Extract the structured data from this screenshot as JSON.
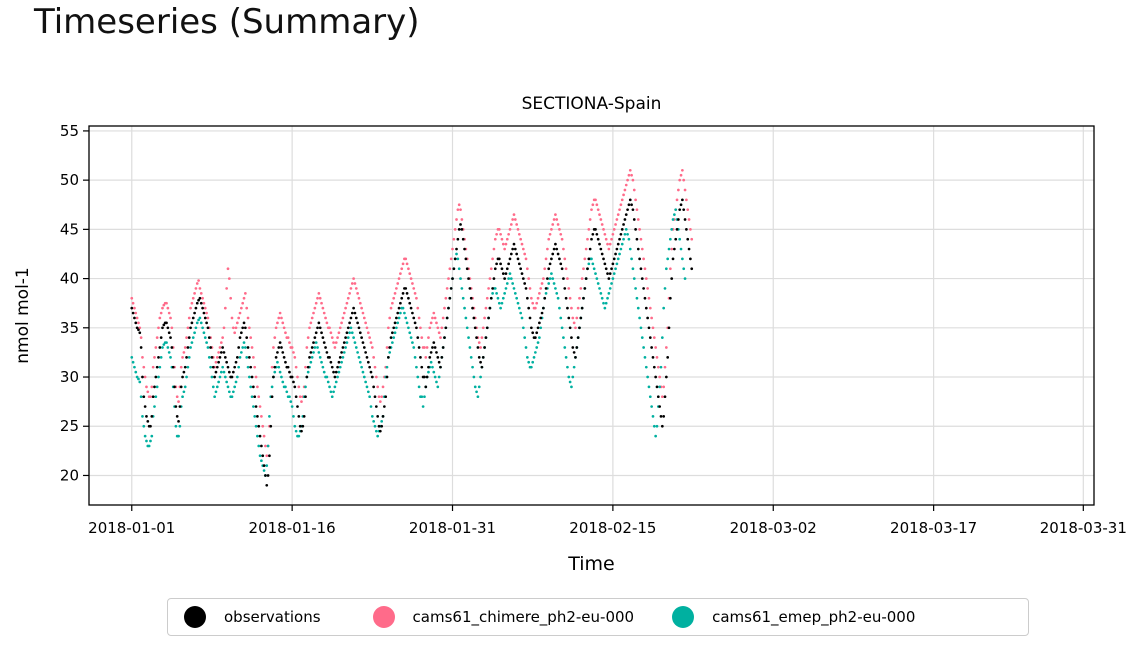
{
  "page": {
    "heading": "Timeseries (Summary)"
  },
  "colors": {
    "observations": "#000000",
    "chimere": "#ff6b8a",
    "emep": "#00b0a0"
  },
  "chart_data": {
    "type": "scatter",
    "title": "SECTIONA-Spain",
    "xlabel": "Time",
    "ylabel": "nmol mol-1",
    "xlim": [
      "2017-12-28",
      "2018-04-01"
    ],
    "ylim": [
      17,
      55.5
    ],
    "x_ticks": [
      "2018-01-01",
      "2018-01-16",
      "2018-01-31",
      "2018-02-15",
      "2018-03-02",
      "2018-03-17",
      "2018-03-31"
    ],
    "y_ticks": [
      20,
      25,
      30,
      35,
      40,
      45,
      50,
      55
    ],
    "grid": true,
    "legend": "bottom-center",
    "x_resolution": "3-hourly",
    "series": [
      {
        "name": "observations",
        "color": "#000000",
        "x_start": "2018-01-01",
        "x_step_hours": 3,
        "values": [
          37,
          36.5,
          36,
          35.5,
          35,
          34.8,
          34.5,
          33,
          30,
          28,
          27,
          26,
          25.5,
          25,
          25,
          26,
          28,
          29,
          30,
          31,
          32,
          33,
          34,
          35,
          35.3,
          35.5,
          35.5,
          35,
          34.5,
          34,
          33,
          31,
          29,
          27,
          26,
          25.5,
          27,
          29,
          30,
          30.5,
          31,
          32,
          33,
          34,
          35,
          35.5,
          36,
          36.5,
          37,
          37.5,
          37.8,
          38,
          37.5,
          37,
          36.5,
          36,
          35.5,
          35,
          34,
          33,
          32,
          31,
          30,
          30.5,
          31,
          31.5,
          32,
          32.5,
          33,
          32.5,
          32,
          31.5,
          31,
          30.5,
          30,
          30,
          30.5,
          31,
          31.5,
          32,
          33,
          34,
          34.5,
          35,
          35.5,
          35,
          34,
          33,
          32,
          31,
          30,
          29,
          28,
          27,
          26,
          25,
          24,
          23,
          22,
          21,
          20,
          19,
          20,
          22,
          25,
          28,
          30,
          31,
          32,
          32.5,
          33,
          33.5,
          33,
          32.5,
          32,
          31.5,
          31,
          31,
          30.5,
          30,
          30,
          29.5,
          29,
          28,
          27,
          26,
          25,
          24.5,
          25,
          26,
          28,
          30,
          31,
          32,
          32.5,
          33,
          33.5,
          34,
          34.5,
          35,
          35.5,
          35,
          34.5,
          34,
          33.5,
          33,
          32.5,
          32,
          32,
          31.5,
          31,
          30.5,
          30,
          30.5,
          31,
          31.5,
          32,
          32.5,
          33,
          33.5,
          34,
          34.5,
          35,
          35.5,
          36,
          36.5,
          37,
          36.5,
          36,
          35.5,
          35,
          34.5,
          34,
          33.5,
          33,
          32.5,
          32,
          31.5,
          31,
          30.5,
          30,
          29,
          28,
          27,
          26,
          25,
          24.5,
          25,
          26,
          27,
          28,
          30,
          32,
          33,
          34,
          34.5,
          35,
          35.5,
          36,
          36.5,
          37,
          37.5,
          38,
          38.5,
          39,
          39,
          38.5,
          38,
          37.5,
          37,
          36.5,
          36,
          35.5,
          35,
          34,
          33,
          32,
          31,
          30,
          30,
          29,
          30,
          31,
          32,
          32.5,
          33,
          33.5,
          33,
          32.5,
          32,
          31.5,
          31,
          32,
          33,
          34,
          35,
          36,
          37,
          38,
          39,
          40,
          41,
          42,
          43,
          44,
          45,
          45.5,
          45,
          44,
          43,
          42,
          41,
          40,
          39,
          38,
          37,
          36,
          35,
          34,
          33,
          32,
          31.5,
          31,
          32,
          33,
          34,
          35,
          36,
          37,
          38,
          39,
          40,
          41,
          41.5,
          42,
          42,
          41.5,
          41,
          40.5,
          40,
          40.5,
          41,
          41.5,
          42,
          42.5,
          43,
          43.5,
          43,
          42.5,
          42,
          41.5,
          41,
          40.5,
          40,
          39.5,
          39,
          38,
          37,
          36,
          35,
          34.5,
          34,
          34,
          34.5,
          35,
          35.5,
          36,
          36.5,
          37,
          38,
          39,
          40,
          41,
          41.5,
          42,
          42.5,
          43,
          43.5,
          43,
          42.5,
          42,
          41.5,
          41,
          40,
          39,
          38,
          37,
          36,
          35,
          34,
          33,
          32.5,
          32,
          33,
          34,
          35,
          36,
          37,
          38,
          39,
          40,
          41,
          42,
          43,
          44,
          44.5,
          45,
          45,
          44.5,
          44,
          43.5,
          43,
          42.5,
          42,
          41.5,
          41,
          40.5,
          40,
          40.5,
          41,
          41.5,
          42,
          42.5,
          43,
          43.5,
          44,
          44.5,
          45,
          45.5,
          46,
          46.5,
          47,
          47.5,
          48,
          47.5,
          47,
          46,
          45,
          44,
          43,
          42,
          41,
          40,
          39,
          38,
          37,
          36,
          35,
          34,
          33,
          32,
          31,
          30,
          29,
          28,
          27,
          26,
          25,
          26,
          28,
          30,
          32,
          35,
          38,
          40,
          42,
          43,
          44,
          45,
          46,
          47,
          47.5,
          48,
          47,
          46,
          45,
          44,
          43,
          42,
          41
        ]
      },
      {
        "name": "cams61_chimere_ph2-eu-000",
        "color": "#ff6b8a",
        "x_start": "2018-01-01",
        "x_step_hours": 3,
        "values": [
          38,
          37.5,
          37,
          36.5,
          36,
          35.5,
          35,
          34,
          32,
          31,
          30,
          29,
          28.5,
          28,
          28,
          29,
          31,
          32,
          33,
          34,
          35,
          36,
          36.5,
          37,
          37.3,
          37.5,
          37.5,
          37,
          36.5,
          36,
          35,
          33,
          31,
          29,
          28,
          27.5,
          29,
          31,
          32,
          32.5,
          33,
          34,
          35,
          36,
          37,
          37.5,
          38,
          38.5,
          39,
          39.5,
          39.8,
          39,
          38.5,
          38,
          37.5,
          37,
          36.5,
          36,
          35,
          34,
          33,
          32,
          31,
          31.5,
          32,
          32.5,
          33,
          33.5,
          34,
          35,
          37,
          39,
          41,
          40,
          38,
          36,
          35,
          34.5,
          35,
          35.5,
          36,
          36.5,
          37,
          37.5,
          38,
          38.5,
          37,
          36,
          35,
          34,
          33,
          32,
          31,
          30,
          29,
          28,
          27,
          26,
          25,
          24,
          23,
          22,
          23,
          25,
          28,
          31,
          33,
          34,
          35,
          35.5,
          36,
          36.5,
          36,
          35.5,
          35,
          34.5,
          34,
          34,
          33.5,
          33,
          33,
          32.5,
          32,
          31,
          30,
          29,
          28,
          27.5,
          28,
          29,
          31,
          33,
          34,
          35,
          35.5,
          36,
          36.5,
          37,
          37.5,
          38,
          38.5,
          38,
          37.5,
          37,
          36.5,
          36,
          35.5,
          35,
          35,
          34.5,
          34,
          33.5,
          33,
          33.5,
          34,
          34.5,
          35,
          35.5,
          36,
          36.5,
          37,
          37.5,
          38,
          38.5,
          39,
          39.5,
          40,
          39.5,
          39,
          38.5,
          38,
          37.5,
          37,
          36.5,
          36,
          35.5,
          35,
          34.5,
          34,
          33.5,
          33,
          32,
          31,
          30,
          29,
          28,
          27.5,
          28,
          29,
          30,
          31,
          33,
          35,
          36,
          37,
          37.5,
          38,
          38.5,
          39,
          39.5,
          40,
          40.5,
          41,
          41.5,
          42,
          42,
          41.5,
          41,
          40.5,
          40,
          39.5,
          39,
          38.5,
          38,
          37,
          36,
          35,
          34,
          33,
          33,
          32,
          33,
          34,
          35,
          35.5,
          36,
          36.5,
          36,
          35.5,
          35,
          34.5,
          34,
          35,
          36,
          37,
          38,
          39,
          40,
          41,
          42,
          43,
          44,
          45,
          46,
          47,
          47.5,
          47,
          46,
          45,
          44,
          43,
          42,
          41,
          40,
          39,
          38,
          37,
          36,
          35,
          34,
          33.5,
          33,
          34,
          35,
          36,
          37,
          38,
          39,
          40,
          41,
          42,
          43,
          44,
          44.5,
          45,
          45,
          44.5,
          44,
          43.5,
          43,
          43.5,
          44,
          44.5,
          45,
          45.5,
          46,
          46.5,
          46,
          45.5,
          45,
          44.5,
          44,
          43.5,
          43,
          42.5,
          42,
          41,
          40,
          39,
          38,
          37.5,
          37,
          37,
          37.5,
          38,
          38.5,
          39,
          39.5,
          40,
          41,
          42,
          43,
          44,
          44.5,
          45,
          45.5,
          46,
          46.5,
          46,
          45.5,
          45,
          44.5,
          44,
          43,
          42,
          41,
          40,
          39,
          38,
          37,
          36,
          35.5,
          35,
          36,
          37,
          38,
          39,
          40,
          41,
          42,
          43,
          44,
          45,
          46,
          47,
          47.5,
          48,
          48,
          47.5,
          47,
          46.5,
          46,
          45.5,
          45,
          44.5,
          44,
          43.5,
          43,
          43.5,
          44,
          44.5,
          45,
          45.5,
          46,
          46.5,
          47,
          47.5,
          48,
          48.5,
          49,
          49.5,
          50,
          50.5,
          51,
          50.5,
          50,
          49,
          48,
          47,
          46,
          45,
          44,
          43,
          42,
          41,
          40,
          39,
          38,
          37,
          36,
          35,
          34,
          33,
          32,
          31,
          30,
          29,
          28,
          29,
          31,
          33,
          35,
          38,
          41,
          43,
          45,
          46,
          47,
          48,
          49,
          50,
          50.5,
          51,
          50,
          49,
          48,
          47,
          46,
          45,
          44
        ]
      },
      {
        "name": "cams61_emep_ph2-eu-000",
        "color": "#00b0a0",
        "x_start": "2018-01-01",
        "x_step_hours": 3,
        "values": [
          32,
          31.5,
          31,
          30.5,
          30,
          29.8,
          29.5,
          28,
          26,
          25,
          24,
          23.5,
          23,
          23,
          23.5,
          24,
          26,
          27,
          28,
          29,
          30,
          31,
          32,
          33,
          33.3,
          33.5,
          33.5,
          33,
          32.5,
          32,
          31,
          29,
          27,
          25,
          24,
          24,
          25,
          27,
          28,
          28.5,
          29,
          30,
          31,
          32,
          33,
          33.5,
          34,
          34.5,
          35,
          35.5,
          35.8,
          36,
          35.5,
          35,
          34.5,
          34,
          33.5,
          33,
          32,
          31,
          30,
          29,
          28,
          28.5,
          29,
          29.5,
          30,
          30.5,
          31,
          30.5,
          30,
          29.5,
          29,
          28.5,
          28,
          28,
          28.5,
          29,
          29.5,
          30,
          31,
          32,
          32.5,
          33,
          33.5,
          33,
          32,
          31,
          30,
          29,
          28,
          27,
          26,
          25,
          24,
          23,
          22,
          21.5,
          21,
          20.5,
          20,
          21,
          23,
          26,
          28,
          29,
          30,
          30.5,
          31,
          31.5,
          31,
          30.5,
          30,
          29.5,
          29,
          29,
          28.5,
          28,
          28,
          27.5,
          27,
          26,
          25,
          24.5,
          24,
          24,
          24.5,
          25,
          26,
          28,
          29,
          30,
          30.5,
          31,
          31.5,
          32,
          32.5,
          33,
          33.5,
          33,
          32.5,
          32,
          31.5,
          31,
          30.5,
          30,
          30,
          29.5,
          29,
          28.5,
          28,
          28.5,
          29,
          29.5,
          30,
          30.5,
          31,
          31.5,
          32,
          32.5,
          33,
          33.5,
          34,
          34.5,
          35,
          34.5,
          34,
          33.5,
          33,
          32.5,
          32,
          31.5,
          31,
          30.5,
          30,
          29.5,
          29,
          28.5,
          28,
          27,
          26,
          25.5,
          25,
          24.5,
          24,
          24.5,
          25,
          25.5,
          26,
          28,
          30,
          31,
          32,
          32.5,
          33,
          33.5,
          34,
          34.5,
          35,
          35.5,
          36,
          36.5,
          37,
          37,
          36.5,
          36,
          35.5,
          35,
          34.5,
          34,
          33.5,
          33,
          32,
          31,
          30,
          29,
          28,
          28,
          27,
          28,
          29,
          30,
          30.5,
          31,
          31.5,
          31,
          30.5,
          30,
          29.5,
          29,
          30,
          31,
          32,
          33,
          34,
          35,
          36,
          37,
          38,
          39,
          40,
          41,
          42,
          42.5,
          42,
          41,
          40,
          39,
          38,
          37,
          36,
          35,
          34,
          33,
          32,
          31,
          30,
          29,
          28.5,
          28,
          29,
          30,
          31,
          32,
          33,
          34,
          35,
          36,
          37,
          38,
          38.5,
          39,
          39,
          38.5,
          38,
          37.5,
          37,
          37.5,
          38,
          38.5,
          39,
          39.5,
          40,
          40.5,
          40,
          39.5,
          39,
          38.5,
          38,
          37.5,
          37,
          36.5,
          36,
          35,
          34,
          33,
          32,
          31.5,
          31,
          31,
          31.5,
          32,
          32.5,
          33,
          33.5,
          34,
          35,
          36,
          37,
          38,
          38.5,
          39,
          39.5,
          40,
          40.5,
          40,
          39.5,
          39,
          38.5,
          38,
          37,
          36,
          35,
          34,
          33,
          32,
          31,
          30,
          29.5,
          29,
          30,
          31,
          32,
          33,
          34,
          35,
          36,
          37,
          38,
          39,
          40,
          41,
          41.5,
          42,
          42,
          41.5,
          41,
          40.5,
          40,
          39.5,
          39,
          38.5,
          38,
          37.5,
          37,
          37.5,
          38,
          38.5,
          39,
          39.5,
          40,
          40.5,
          41,
          41.5,
          42,
          42.5,
          43,
          43.5,
          44,
          44.5,
          45,
          44.5,
          44,
          43,
          42,
          41,
          40,
          39,
          38,
          37,
          36,
          35,
          34,
          33,
          32,
          31,
          30,
          29,
          28,
          27,
          26,
          25,
          24,
          25,
          27,
          29,
          31,
          34,
          37,
          39,
          41,
          42,
          43,
          44,
          45,
          46,
          46.5,
          47,
          46,
          45,
          44,
          43,
          42,
          41,
          40
        ]
      }
    ]
  }
}
